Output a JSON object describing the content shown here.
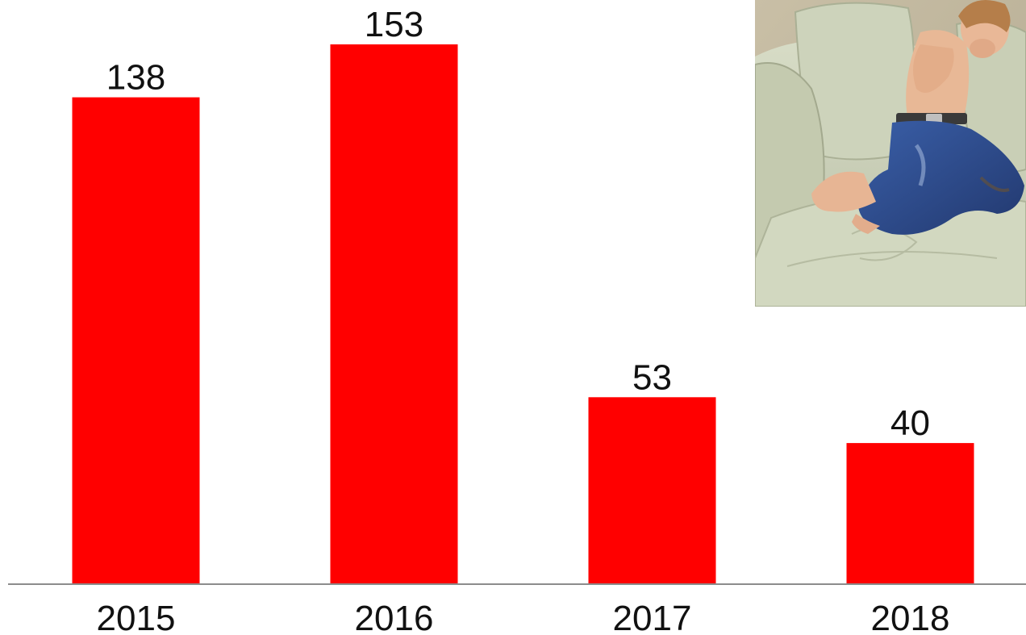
{
  "chart_data": {
    "type": "bar",
    "categories": [
      "2015",
      "2016",
      "2017",
      "2018"
    ],
    "values": [
      138,
      153,
      53,
      40
    ],
    "data_labels": [
      "138",
      "153",
      "53",
      "40"
    ],
    "title": "",
    "xlabel": "",
    "ylabel": "",
    "ylim": [
      0,
      153
    ],
    "grid": false,
    "legend": "none",
    "bar_color": "#ff0000",
    "axis_color": "#8c8c8c"
  },
  "photo": {
    "description_icon": "child-on-sofa-photo"
  }
}
